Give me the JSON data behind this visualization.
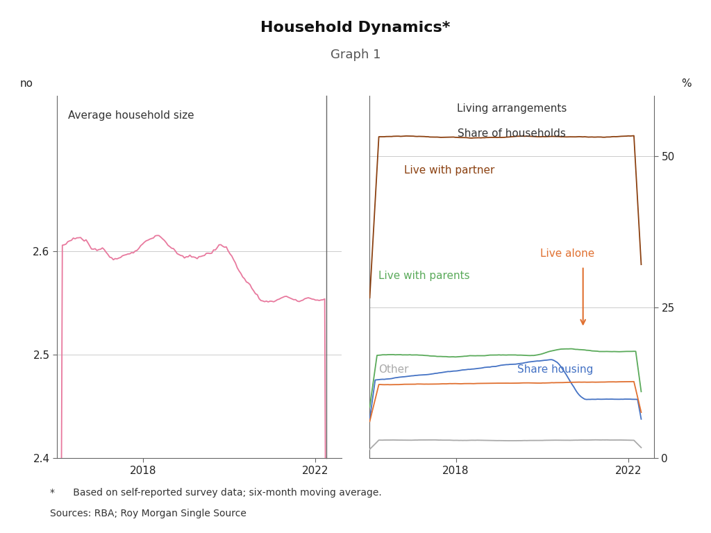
{
  "title_line1": "Graph 1",
  "title_line2": "Household Dynamics*",
  "background_color": "#ffffff",
  "left_panel_label": "Average household size",
  "right_panel_label_line1": "Living arrangements",
  "right_panel_label_line2": "Share of households",
  "left_ylabel": "no",
  "right_ylabel": "%",
  "left_ylim": [
    2.4,
    2.75
  ],
  "right_ylim": [
    0,
    60
  ],
  "left_yticks": [
    2.4,
    2.5,
    2.6
  ],
  "right_yticks": [
    0,
    25,
    50
  ],
  "xlim": [
    2016.0,
    2022.6
  ],
  "xticks": [
    2018,
    2022
  ],
  "footnote_star": "*      Based on self-reported survey data; six-month moving average.",
  "footnote_sources": "Sources: RBA; Roy Morgan Single Source",
  "left_line_color": "#e8799e",
  "partner_color": "#8B4010",
  "parents_color": "#5aaa5a",
  "alone_color": "#e07030",
  "share_housing_color": "#4472c4",
  "other_color": "#aaaaaa",
  "grid_color": "#cccccc",
  "spine_color": "#666666",
  "divider_color": "#666666"
}
